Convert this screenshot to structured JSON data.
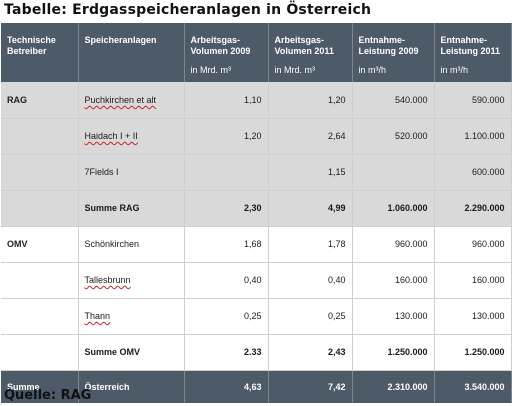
{
  "title": "Tabelle: Erdgasspeicheranlagen in Österreich",
  "source": "Quelle: RAG",
  "headers": [
    {
      "line1": "Technische",
      "line2": "Betreiber",
      "unit": ""
    },
    {
      "line1": "Speicheranlagen",
      "line2": "",
      "unit": ""
    },
    {
      "line1": "Arbeitsgas-",
      "line2": "Volumen 2009",
      "unit": "in Mrd. m³"
    },
    {
      "line1": "Arbeitsgas-",
      "line2": "Volumen 2011",
      "unit": "in Mrd. m³"
    },
    {
      "line1": "Entnahme-",
      "line2": "Leistung 2009",
      "unit": "in m³/h"
    },
    {
      "line1": "Entnahme-",
      "line2": "Leistung 2011",
      "unit": "in m³/h"
    }
  ],
  "rows": [
    {
      "operator": "RAG",
      "facility": "Puchkirchen et alt",
      "vol2009": "1,10",
      "vol2011": "1,20",
      "rate2009": "540.000",
      "rate2011": "590.000"
    },
    {
      "operator": "",
      "facility": "Haidach I + II",
      "vol2009": "1,20",
      "vol2011": "2,64",
      "rate2009": "520.000",
      "rate2011": "1.100.000"
    },
    {
      "operator": "",
      "facility": "7Fields I",
      "vol2009": "",
      "vol2011": "1,15",
      "rate2009": "",
      "rate2011": "600.000"
    },
    {
      "operator": "",
      "facility": "Summe RAG",
      "vol2009": "2,30",
      "vol2011": "4,99",
      "rate2009": "1.060.000",
      "rate2011": "2.290.000"
    },
    {
      "operator": "OMV",
      "facility": "Schönkirchen",
      "vol2009": "1,68",
      "vol2011": "1,78",
      "rate2009": "960.000",
      "rate2011": "960.000"
    },
    {
      "operator": "",
      "facility": "Tallesbrunn",
      "vol2009": "0,40",
      "vol2011": "0,40",
      "rate2009": "160.000",
      "rate2011": "160.000"
    },
    {
      "operator": "",
      "facility": "Thann",
      "vol2009": "0,25",
      "vol2011": "0,25",
      "rate2009": "130.000",
      "rate2011": "130.000"
    },
    {
      "operator": "",
      "facility": "Summe OMV",
      "vol2009": "2.33",
      "vol2011": "2,43",
      "rate2009": "1.250.000",
      "rate2011": "1.250.000"
    }
  ],
  "total": {
    "operator": "Summe",
    "facility": "Österreich",
    "vol2009": "4,63",
    "vol2011": "7,42",
    "rate2009": "2.310.000",
    "rate2011": "3.540.000"
  },
  "colors": {
    "header_bg": "#4d5a68",
    "grey_row_bg": "#d9d9d9",
    "spellcheck_underline": "#cc2222"
  }
}
